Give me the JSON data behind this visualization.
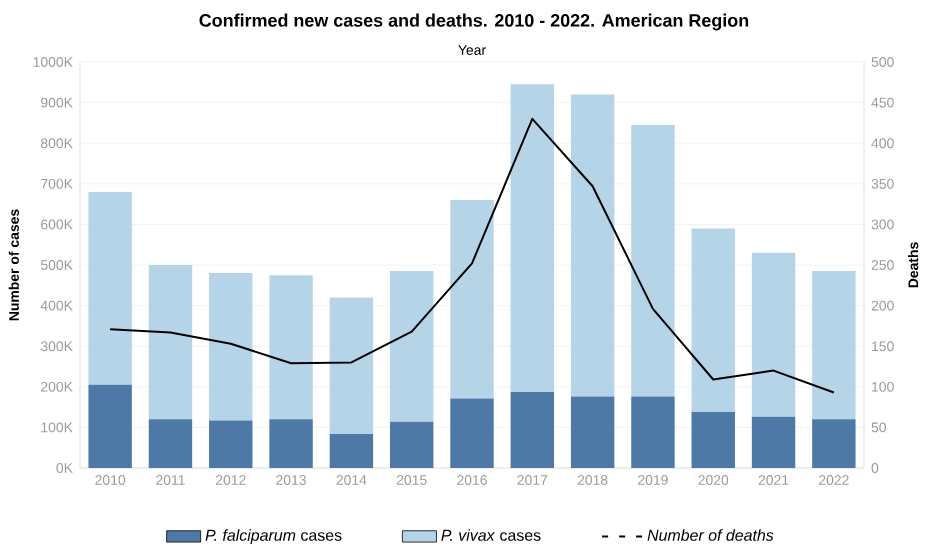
{
  "chart_data": {
    "type": "bar",
    "title": "Confirmed new cases and deaths. 2010 - 2022.  American Region",
    "xlabel": "Year",
    "ylabel": "Number of cases",
    "y2label": "Deaths",
    "categories": [
      "2010",
      "2011",
      "2012",
      "2013",
      "2014",
      "2015",
      "2016",
      "2017",
      "2018",
      "2019",
      "2020",
      "2021",
      "2022"
    ],
    "stacked": true,
    "series": [
      {
        "name": "*P. falciparum* cases",
        "color": "#4e79a7",
        "values": [
          205000,
          120000,
          117000,
          120000,
          84000,
          114000,
          171000,
          187000,
          176000,
          176000,
          138000,
          126000,
          120000
        ]
      },
      {
        "name": "*P. vivax* cases",
        "color": "#b6d4e8",
        "values": [
          475000,
          380000,
          363000,
          355000,
          336000,
          371000,
          489000,
          758000,
          744000,
          669000,
          452000,
          404000,
          365000
        ]
      },
      {
        "name": "Number of deaths",
        "type": "line",
        "axis": "y2",
        "color": "#000000",
        "values": [
          171,
          167,
          153,
          129,
          130,
          168,
          252,
          430,
          347,
          196,
          109,
          120,
          93
        ]
      }
    ],
    "ylim": [
      0,
      1000000
    ],
    "yticks": [
      {
        "value": 0,
        "label": "0K"
      },
      {
        "value": 100000,
        "label": "100K"
      },
      {
        "value": 200000,
        "label": "200K"
      },
      {
        "value": 300000,
        "label": "300K"
      },
      {
        "value": 400000,
        "label": "400K"
      },
      {
        "value": 500000,
        "label": "500K"
      },
      {
        "value": 600000,
        "label": "600K"
      },
      {
        "value": 700000,
        "label": "700K"
      },
      {
        "value": 800000,
        "label": "800K"
      },
      {
        "value": 900000,
        "label": "900K"
      },
      {
        "value": 1000000,
        "label": "1000K"
      }
    ],
    "y2lim": [
      0,
      500
    ],
    "y2ticks": [
      0,
      50,
      100,
      150,
      200,
      250,
      300,
      350,
      400,
      450,
      500
    ],
    "grid": "y",
    "legend": "bottom"
  }
}
